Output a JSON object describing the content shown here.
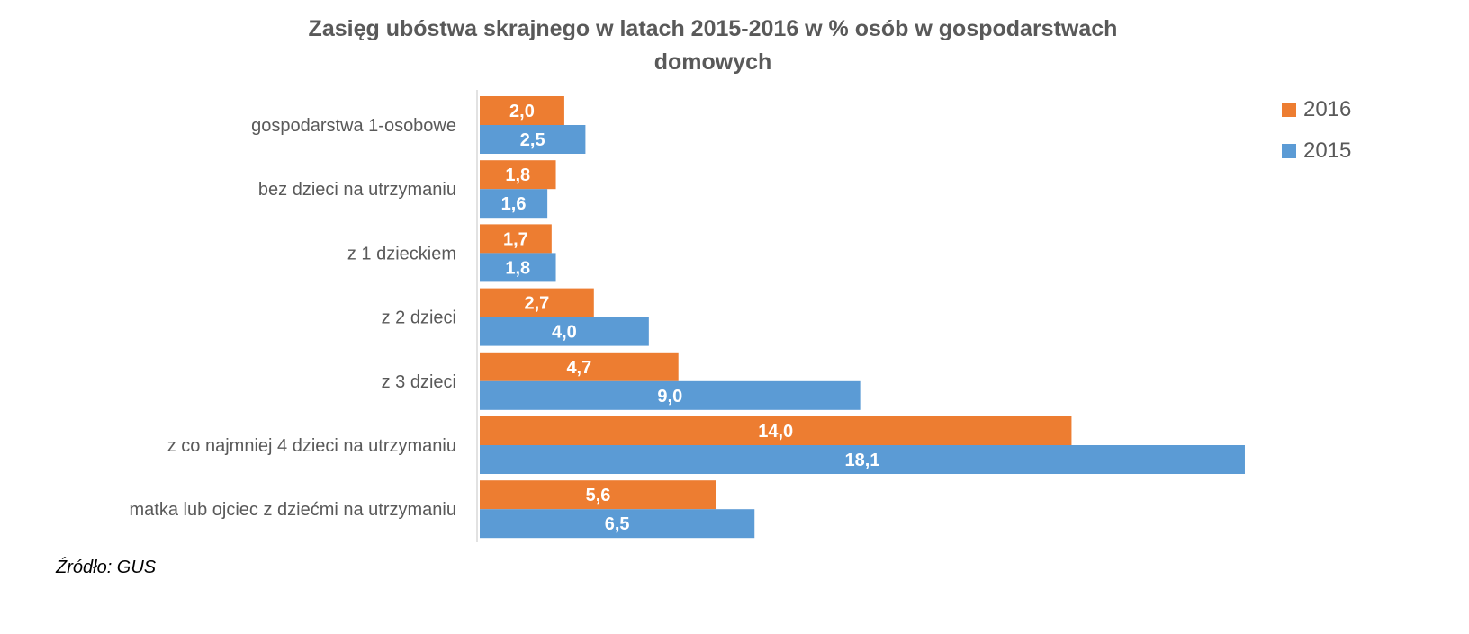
{
  "chart_data": {
    "type": "bar",
    "orientation": "horizontal",
    "title_lines": [
      "Zasięg ubóstwa skrajnego w latach 2015-2016 w % osób w gospodarstwach",
      "domowych"
    ],
    "categories": [
      "gospodarstwa 1-osobowe",
      "bez dzieci na utrzymaniu",
      "z 1 dzieckiem",
      "z 2 dzieci",
      "z 3 dzieci",
      "z co najmniej 4 dzieci na utrzymaniu",
      "matka lub ojciec z dziećmi na utrzymaniu"
    ],
    "series": [
      {
        "name": "2016",
        "color": "#ED7D31",
        "values": [
          2.0,
          1.8,
          1.7,
          2.7,
          4.7,
          14.0,
          5.6
        ],
        "labels": [
          "2,0",
          "1,8",
          "1,7",
          "2,7",
          "4,7",
          "14,0",
          "5,6"
        ]
      },
      {
        "name": "2015",
        "color": "#5B9BD5",
        "values": [
          2.5,
          1.6,
          1.8,
          4.0,
          9.0,
          18.1,
          6.5
        ],
        "labels": [
          "2,5",
          "1,6",
          "1,8",
          "4,0",
          "9,0",
          "18,1",
          "6,5"
        ]
      }
    ],
    "xlim": [
      0,
      22.8
    ],
    "grid": false,
    "legend_position": "top-right"
  },
  "source": "Źródło: GUS"
}
